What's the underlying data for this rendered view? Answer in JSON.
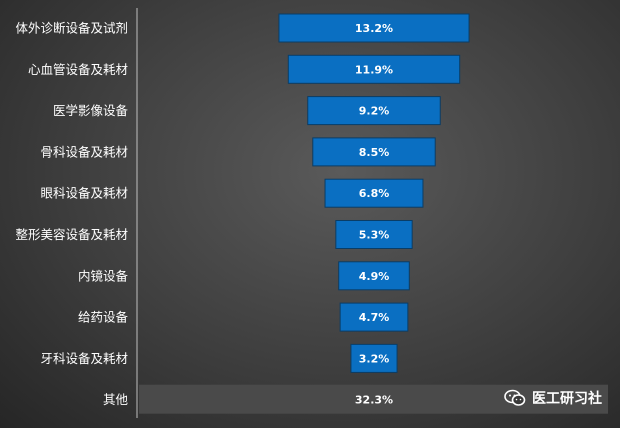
{
  "chart_data": {
    "type": "bar",
    "orientation": "horizontal",
    "layout": "funnel",
    "categories": [
      "体外诊断设备及试剂",
      "心血管设备及耗材",
      "医学影像设备",
      "骨科设备及耗材",
      "眼科设备及耗材",
      "整形美容设备及耗材",
      "内镜设备",
      "给药设备",
      "牙科设备及耗材",
      "其他"
    ],
    "values": [
      13.2,
      11.9,
      9.2,
      8.5,
      6.8,
      5.3,
      4.9,
      4.7,
      3.2,
      32.3
    ],
    "value_labels": [
      "13.2%",
      "11.9%",
      "9.2%",
      "8.5%",
      "6.8%",
      "5.3%",
      "4.9%",
      "4.7%",
      "3.2%",
      "32.3%"
    ],
    "unit": "%",
    "bar_color": "#0a6fc2",
    "other_bar_color": "#4a4a4a",
    "grid": false,
    "legend": "none"
  },
  "watermark": {
    "icon": "wechat-icon",
    "text": "医工研习社"
  }
}
